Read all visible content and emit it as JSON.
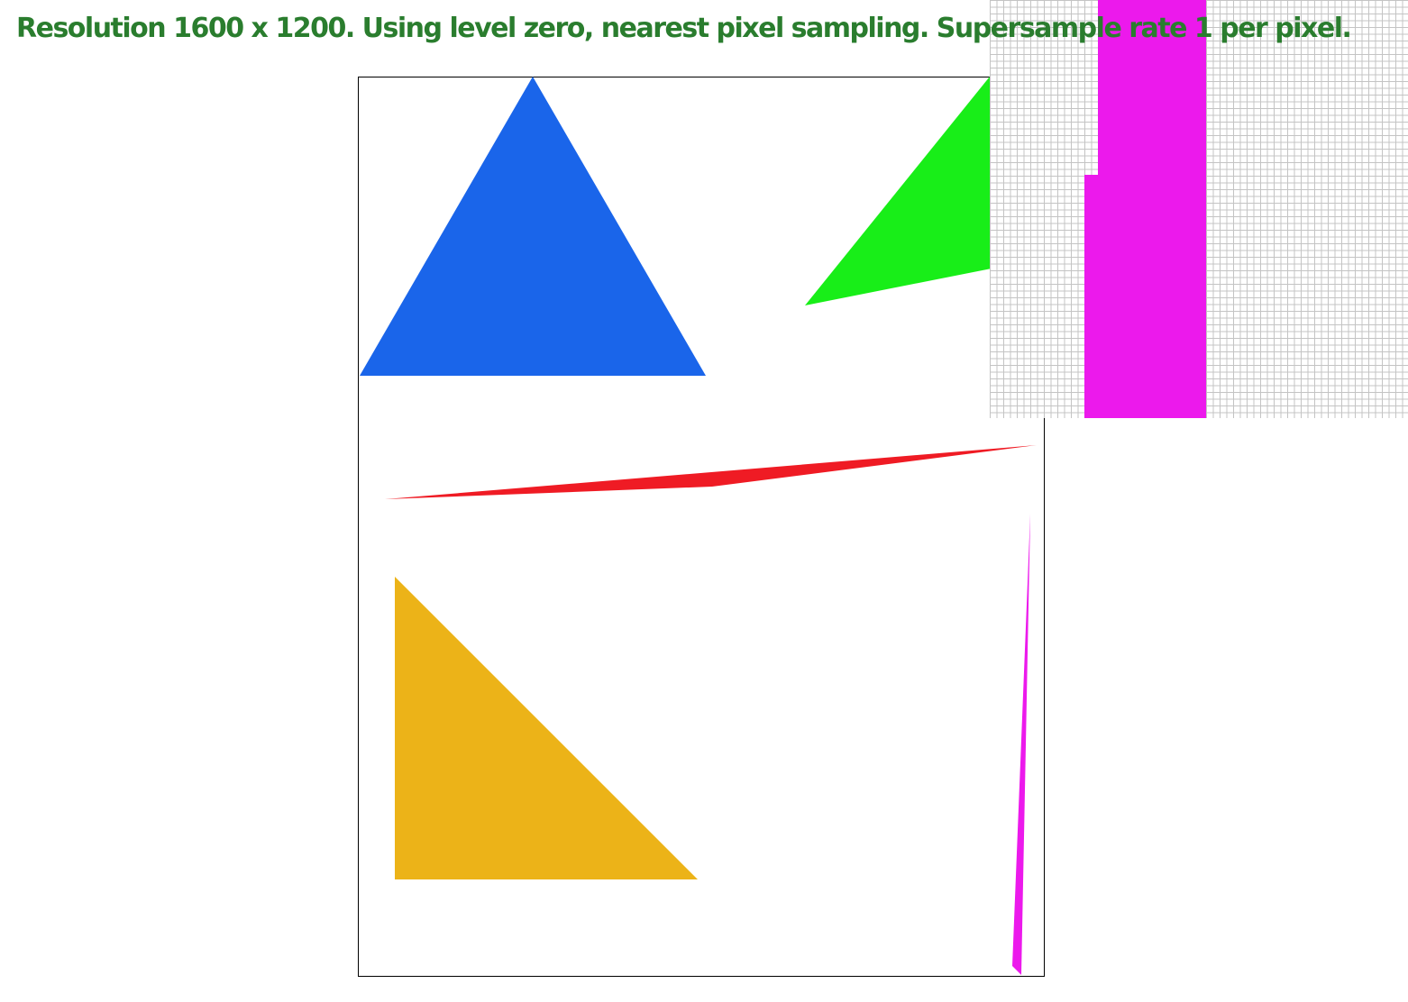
{
  "status": {
    "text": "Resolution 1600 x 1200. Using level zero, nearest pixel sampling. Supersample rate 1 per pixel.",
    "color": "#2a7d2e"
  },
  "colors": {
    "frame": "#000000",
    "triangle_blue": "#1a65ea",
    "triangle_green": "#18ee18",
    "triangle_red": "#ef1b24",
    "triangle_yellow": "#ecb318",
    "triangle_magenta": "#ec19ec",
    "zoom_grid": "#c4c4c4"
  }
}
